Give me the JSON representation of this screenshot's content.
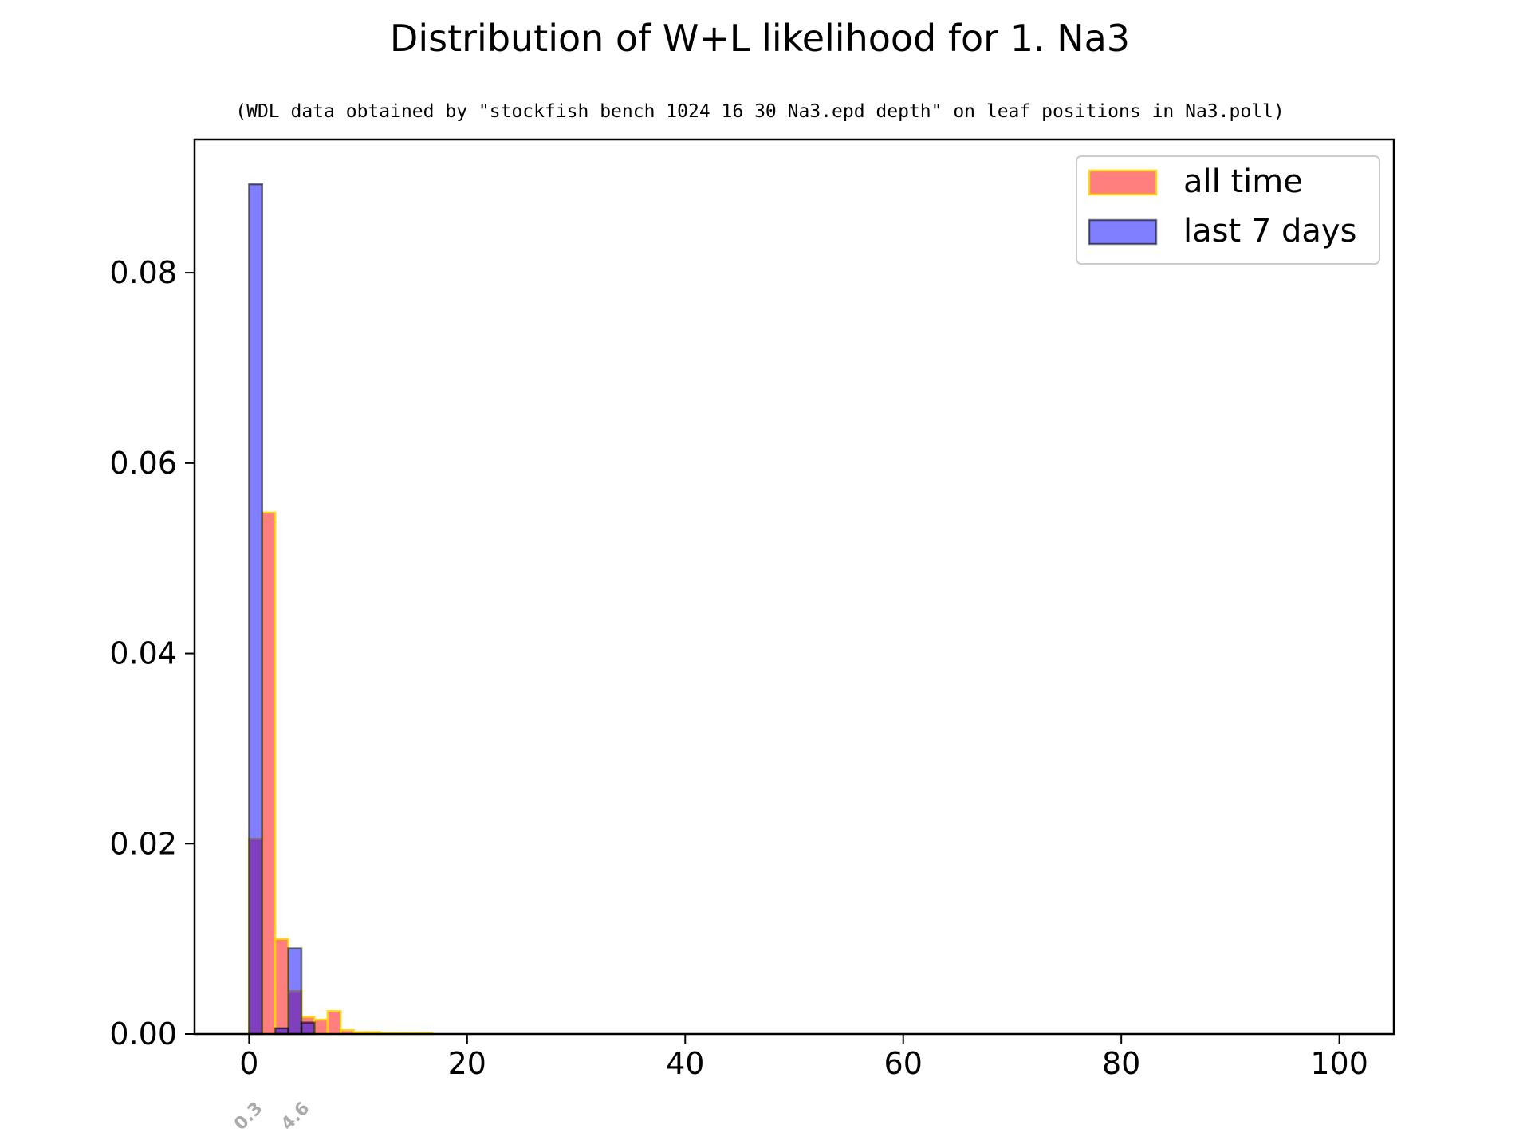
{
  "chart_data": {
    "type": "bar",
    "title": "Distribution of W+L likelihood for 1. Na3",
    "subtitle": "(WDL data obtained by \"stockfish bench 1024 16 30 Na3.epd depth\" on leaf positions in Na3.poll)",
    "xlabel": "",
    "ylabel": "",
    "xlim": [
      -5,
      105
    ],
    "ylim": [
      0,
      0.094
    ],
    "x_ticks": [
      0,
      20,
      40,
      60,
      80,
      100
    ],
    "y_ticks": [
      0.0,
      0.02,
      0.04,
      0.06,
      0.08
    ],
    "y_tick_labels": [
      "0.00",
      "0.02",
      "0.04",
      "0.06",
      "0.08"
    ],
    "grid": false,
    "legend_position": "top-right",
    "bin_width": 1.2,
    "series": [
      {
        "name": "all time",
        "color": "#ff0000",
        "edge_color": "#ffd700",
        "opacity": 0.5,
        "bins": [
          {
            "x": 0,
            "value": 0.0205
          },
          {
            "x": 1.2,
            "value": 0.0548
          },
          {
            "x": 2.4,
            "value": 0.01
          },
          {
            "x": 3.6,
            "value": 0.0045
          },
          {
            "x": 4.8,
            "value": 0.0018
          },
          {
            "x": 6.0,
            "value": 0.0015
          },
          {
            "x": 7.2,
            "value": 0.0024
          },
          {
            "x": 8.4,
            "value": 0.0004
          },
          {
            "x": 9.6,
            "value": 0.0002
          },
          {
            "x": 10.8,
            "value": 0.0002
          },
          {
            "x": 12.0,
            "value": 0.0001
          },
          {
            "x": 13.2,
            "value": 0.0001
          },
          {
            "x": 14.4,
            "value": 0.0001
          },
          {
            "x": 15.6,
            "value": 0.0001
          }
        ]
      },
      {
        "name": "last 7 days",
        "color": "#0000ff",
        "edge_color": "#000000",
        "opacity": 0.5,
        "bins": [
          {
            "x": 0,
            "value": 0.0893
          },
          {
            "x": 1.2,
            "value": 0.0
          },
          {
            "x": 2.4,
            "value": 0.0006
          },
          {
            "x": 3.6,
            "value": 0.009
          },
          {
            "x": 4.8,
            "value": 0.0012
          }
        ]
      }
    ],
    "annotations": [
      {
        "x": 0.3,
        "label": "0.3",
        "color": "#aaaaaa"
      },
      {
        "x": 4.6,
        "label": "4.6",
        "color": "#aaaaaa"
      }
    ]
  }
}
